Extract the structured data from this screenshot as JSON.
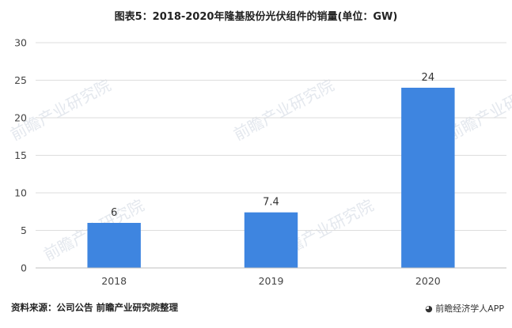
{
  "chart_data": {
    "type": "bar",
    "title": "图表5：2018-2020年隆基股份光伏组件的销量(单位：GW)",
    "categories": [
      "2018",
      "2019",
      "2020"
    ],
    "values": [
      6,
      7.4,
      24
    ],
    "value_labels": [
      "6",
      "7.4",
      "24"
    ],
    "ylim": [
      0,
      30
    ],
    "yticks": [
      0,
      5,
      10,
      15,
      20,
      25,
      30
    ],
    "ytick_labels": [
      "0",
      "5",
      "10",
      "15",
      "20",
      "25",
      "30"
    ],
    "grid": true,
    "legend": "none",
    "bar_color": "#3e85e0"
  },
  "source_note": "资料来源：公司公告 前瞻产业研究院整理",
  "brand": {
    "icon": "weibo-icon",
    "text": "前瞻经济学人APP"
  },
  "watermarks": [
    "前瞻产业研究院",
    "前瞻产业研究院",
    "前瞻产业研究院",
    "前瞻产业研究院",
    "前瞻产业研究院"
  ]
}
